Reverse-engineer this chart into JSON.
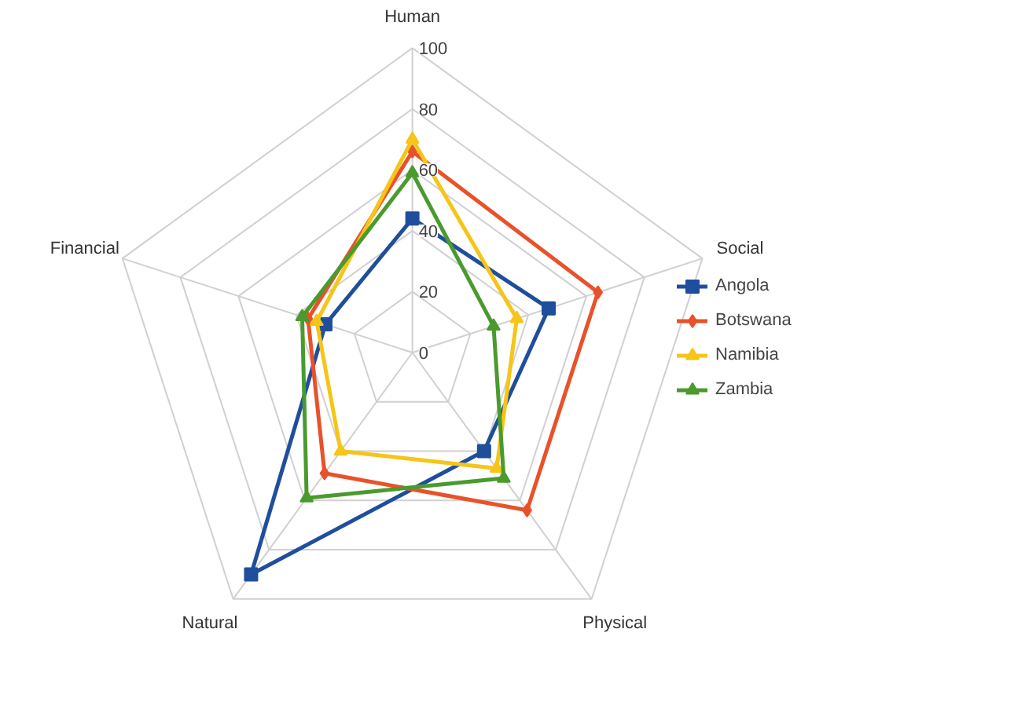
{
  "chart_data": {
    "type": "radar",
    "categories": [
      "Human",
      "Social",
      "Physical",
      "Natural",
      "Financial"
    ],
    "series": [
      {
        "name": "Angola",
        "color": "#1f4e9c",
        "values": [
          44,
          47,
          40,
          90,
          30
        ],
        "marker": "square"
      },
      {
        "name": "Botswana",
        "color": "#e8522a",
        "values": [
          66,
          64,
          64,
          49,
          36
        ],
        "marker": "diamond"
      },
      {
        "name": "Namibia",
        "color": "#f5c518",
        "values": [
          70,
          36,
          47,
          40,
          33
        ],
        "marker": "triangle"
      },
      {
        "name": "Zambia",
        "color": "#4a9a2e",
        "values": [
          59,
          28,
          51,
          59,
          38
        ],
        "marker": "triangle"
      }
    ],
    "ylim": [
      0,
      100
    ],
    "yticks": [
      0,
      20,
      40,
      60,
      80,
      100
    ],
    "grid": true,
    "legend": "right"
  }
}
